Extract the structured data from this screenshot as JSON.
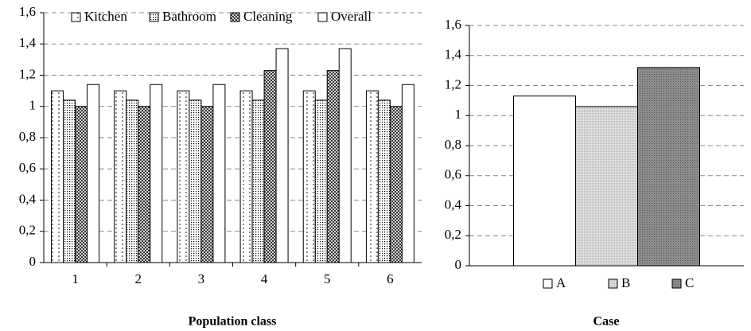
{
  "chart_data": [
    {
      "type": "bar",
      "xlabel": "Population class",
      "categories": [
        "1",
        "2",
        "3",
        "4",
        "5",
        "6"
      ],
      "series": [
        {
          "name": "Kitchen",
          "color": "#ffffff",
          "values": [
            1.1,
            1.1,
            1.1,
            1.1,
            1.1,
            1.1
          ]
        },
        {
          "name": "Bathroom",
          "color": "#ffffff",
          "values": [
            1.04,
            1.04,
            1.04,
            1.04,
            1.04,
            1.04
          ]
        },
        {
          "name": "Cleaning",
          "color": "#d8d8d8",
          "values": [
            1.0,
            1.0,
            1.0,
            1.23,
            1.23,
            1.0
          ]
        },
        {
          "name": "Overall",
          "color": "#ffffff",
          "values": [
            1.14,
            1.14,
            1.14,
            1.37,
            1.37,
            1.14
          ]
        }
      ],
      "ylim": [
        0,
        1.6
      ],
      "yticks": [
        0,
        {
          "value": 0.2,
          "label": "0,2"
        },
        {
          "value": 0.4,
          "label": "0,4"
        },
        {
          "value": 0.6,
          "label": "0,6"
        },
        {
          "value": 0.8,
          "label": "0,8"
        },
        1,
        {
          "value": 1.2,
          "label": "1,2"
        },
        {
          "value": 1.4,
          "label": "1,4"
        },
        {
          "value": 1.6,
          "label": "1,6"
        }
      ],
      "grid": true,
      "legend": "top"
    },
    {
      "type": "bar",
      "xlabel": "Case",
      "categories": [
        null
      ],
      "series": [
        {
          "name": "A",
          "color": "#ffffff",
          "values": [
            1.13
          ]
        },
        {
          "name": "B",
          "color": "#e0e0e0",
          "values": [
            1.06
          ]
        },
        {
          "name": "C",
          "color": "#8c8c8c",
          "values": [
            1.32
          ]
        }
      ],
      "ylim": [
        0,
        1.6
      ],
      "yticks": [
        0,
        {
          "value": 0.2,
          "label": "0,2"
        },
        {
          "value": 0.4,
          "label": "0,4"
        },
        {
          "value": 0.6,
          "label": "0,6"
        },
        {
          "value": 0.8,
          "label": "0,8"
        },
        1,
        {
          "value": 1.2,
          "label": "1,2"
        },
        {
          "value": 1.4,
          "label": "1,4"
        },
        {
          "value": 1.6,
          "label": "1,6"
        }
      ],
      "grid": true,
      "legend": "bottom"
    }
  ]
}
